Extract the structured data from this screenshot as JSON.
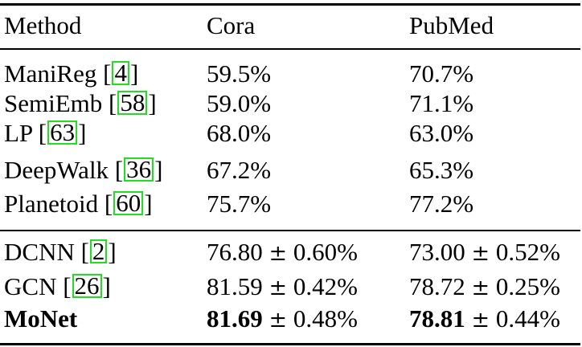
{
  "header": {
    "method": "Method",
    "cora": "Cora",
    "pubmed": "PubMed"
  },
  "rows": [
    {
      "name": "ManiReg",
      "cite": "4",
      "cora": "59.5%",
      "pubmed": "70.7%"
    },
    {
      "name": "SemiEmb",
      "cite": "58",
      "cora": "59.0%",
      "pubmed": "71.1%"
    },
    {
      "name": "LP",
      "cite": "63",
      "cora": "68.0%",
      "pubmed": "63.0%"
    },
    {
      "name": "DeepWalk",
      "cite": "36",
      "cora": "67.2%",
      "pubmed": "65.3%"
    },
    {
      "name": "Planetoid",
      "cite": "60",
      "cora": "75.7%",
      "pubmed": "77.2%"
    },
    {
      "name": "DCNN",
      "cite": "2",
      "cora_mean": "76.80",
      "cora_std": "0.60%",
      "pubmed_mean": "73.00",
      "pubmed_std": "0.52%"
    },
    {
      "name": "GCN",
      "cite": "26",
      "cora_mean": "81.59",
      "cora_std": "0.42%",
      "pubmed_mean": "78.72",
      "pubmed_std": "0.25%"
    },
    {
      "name": "MoNet",
      "cora_mean": "81.69",
      "cora_std": "0.48%",
      "pubmed_mean": "78.81",
      "pubmed_std": "0.44%"
    }
  ],
  "symbols": {
    "plus_minus": "±",
    "open_bracket": "[",
    "close_bracket": "]"
  },
  "colors": {
    "citation_box": "#22dd22"
  }
}
